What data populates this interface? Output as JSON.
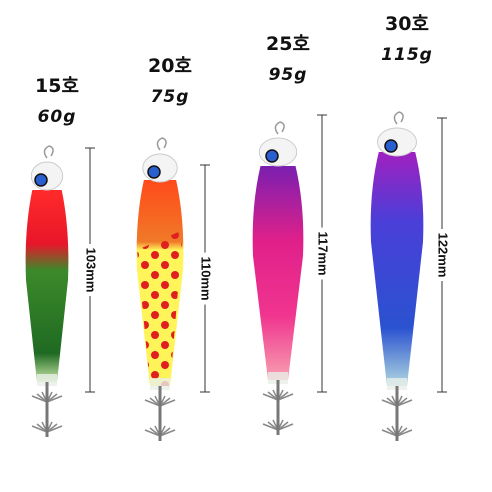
{
  "lures": [
    {
      "size": "15호",
      "weight": "60g",
      "length": "103mm"
    },
    {
      "size": "20호",
      "weight": "75g",
      "length": "110mm"
    },
    {
      "size": "25호",
      "weight": "95g",
      "length": "117mm"
    },
    {
      "size": "30호",
      "weight": "115g",
      "length": "122mm"
    }
  ]
}
